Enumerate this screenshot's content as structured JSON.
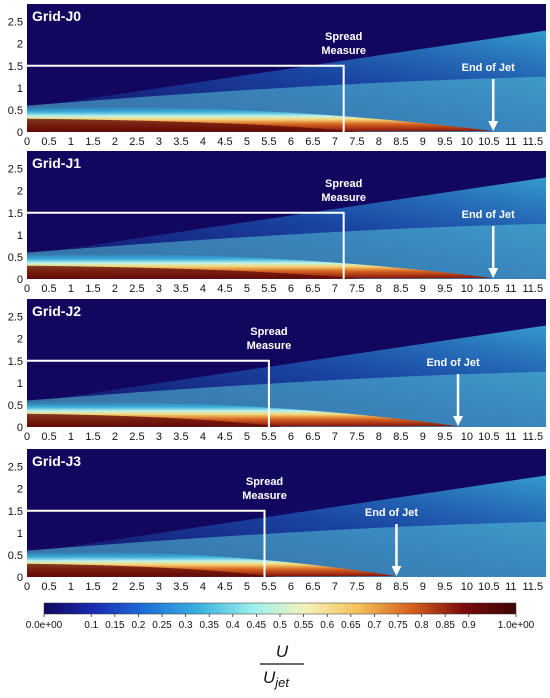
{
  "chart_data": {
    "type": "heatmap",
    "x_ticks": [
      "0",
      "0.5",
      "1",
      "1.5",
      "2",
      "2.5",
      "3",
      "3.5",
      "4",
      "4.5",
      "5",
      "5.5",
      "6",
      "6.5",
      "7",
      "7.5",
      "8",
      "8.5",
      "9",
      "9.5",
      "10",
      "10.5",
      "11",
      "11.5"
    ],
    "y_ticks": [
      "0",
      "0.5",
      "1",
      "1.5",
      "2",
      "2.5"
    ],
    "xlim": [
      0,
      11.8
    ],
    "ylim": [
      0,
      2.9
    ],
    "panels": [
      {
        "title": "Grid-J0",
        "spread_x": 7.2,
        "spread_y": 1.5,
        "end_of_jet_x": 10.6,
        "spread_label_1": "Spread",
        "spread_label_2": "Measure",
        "end_label": "End of Jet"
      },
      {
        "title": "Grid-J1",
        "spread_x": 7.2,
        "spread_y": 1.5,
        "end_of_jet_x": 10.6,
        "spread_label_1": "Spread",
        "spread_label_2": "Measure",
        "end_label": "End of Jet"
      },
      {
        "title": "Grid-J2",
        "spread_x": 5.5,
        "spread_y": 1.5,
        "end_of_jet_x": 9.8,
        "spread_label_1": "Spread",
        "spread_label_2": "Measure",
        "end_label": "End of Jet"
      },
      {
        "title": "Grid-J3",
        "spread_x": 5.4,
        "spread_y": 1.5,
        "end_of_jet_x": 8.4,
        "spread_label_1": "Spread",
        "spread_label_2": "Measure",
        "end_label": "End of Jet"
      }
    ],
    "colorbar": {
      "ticks": [
        "0.0e+00",
        "0.1",
        "0.15",
        "0.2",
        "0.25",
        "0.3",
        "0.35",
        "0.4",
        "0.45",
        "0.5",
        "0.55",
        "0.6",
        "0.65",
        "0.7",
        "0.75",
        "0.8",
        "0.85",
        "0.9",
        "1.0e+00"
      ],
      "tick_values": [
        0,
        0.1,
        0.15,
        0.2,
        0.25,
        0.3,
        0.35,
        0.4,
        0.45,
        0.5,
        0.55,
        0.6,
        0.65,
        0.7,
        0.75,
        0.8,
        0.85,
        0.9,
        1.0
      ],
      "colors": [
        "#12075e",
        "#1a2eb6",
        "#1f74d8",
        "#3cb5df",
        "#9ff0ee",
        "#f4f2b9",
        "#f3c15a",
        "#d6611e",
        "#7a0c0c",
        "#3d0606"
      ],
      "label_numerator": "U",
      "label_denominator_base": "U",
      "label_denominator_sub": "jet"
    },
    "colors": {
      "background": "#12075e",
      "annotation": "#ffffff"
    }
  }
}
